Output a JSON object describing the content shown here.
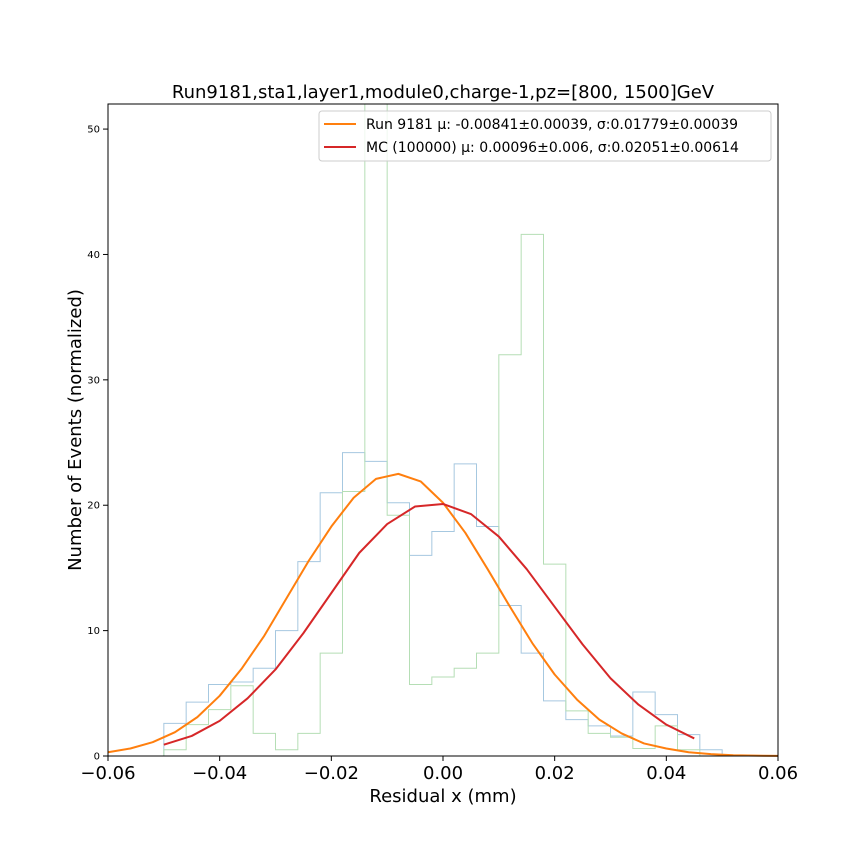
{
  "chart_data": {
    "type": "line",
    "title": "Run9181,sta1,layer1,module0,charge-1,pz=[800, 1500]GeV",
    "xlabel": "Residual x (mm)",
    "ylabel": "Number of Events (normalized)",
    "xlim": [
      -0.06,
      0.06
    ],
    "ylim": [
      0,
      52
    ],
    "xticks": [
      -0.06,
      -0.04,
      -0.02,
      0.0,
      0.02,
      0.04,
      0.06
    ],
    "xtick_labels": [
      "−0.06",
      "−0.04",
      "−0.02",
      "0.00",
      "0.02",
      "0.04",
      "0.06"
    ],
    "yticks": [
      0,
      10,
      20,
      30,
      40,
      50
    ],
    "ytick_labels": [
      "0",
      "10",
      "20",
      "30",
      "40",
      "50"
    ],
    "grid": false,
    "legend_position": "top-right",
    "legend": [
      {
        "label": "Run 9181 μ: -0.00841±0.00039, σ:0.01779±0.00039",
        "color": "#ff7f0e"
      },
      {
        "label": "MC (100000) μ: 0.00096±0.006, σ:0.02051±0.00614",
        "color": "#d62728"
      }
    ],
    "histograms": [
      {
        "color": "#a6c8e0",
        "bin_edges": [
          -0.05,
          -0.046,
          -0.042,
          -0.038,
          -0.034,
          -0.03,
          -0.026,
          -0.022,
          -0.018,
          -0.014,
          -0.01,
          -0.006,
          -0.002,
          0.002,
          0.006,
          0.01,
          0.014,
          0.018,
          0.022,
          0.026,
          0.03,
          0.034,
          0.038,
          0.042,
          0.046,
          0.05
        ],
        "counts": [
          2.6,
          4.3,
          5.7,
          5.9,
          7.0,
          10.0,
          15.5,
          21.0,
          24.2,
          23.5,
          20.2,
          16.0,
          17.9,
          23.3,
          18.3,
          12.0,
          8.2,
          4.4,
          2.9,
          2.4,
          1.6,
          5.1,
          3.3,
          1.7,
          0.5
        ]
      },
      {
        "color": "#b5deb5",
        "bin_edges": [
          -0.05,
          -0.046,
          -0.042,
          -0.038,
          -0.034,
          -0.03,
          -0.026,
          -0.022,
          -0.018,
          -0.014,
          -0.01,
          -0.006,
          -0.002,
          0.002,
          0.006,
          0.01,
          0.014,
          0.018,
          0.022,
          0.026,
          0.03,
          0.034,
          0.038,
          0.042,
          0.046,
          0.05
        ],
        "counts": [
          0.5,
          2.5,
          3.7,
          5.6,
          1.8,
          0.5,
          1.8,
          8.2,
          21.1,
          52.0,
          19.2,
          5.7,
          6.3,
          7.0,
          8.2,
          32.0,
          41.6,
          15.3,
          3.6,
          1.8,
          1.5,
          0.6,
          2.4,
          0.5,
          0.0
        ]
      }
    ],
    "series": [
      {
        "name": "Run 9181 μ: -0.00841±0.00039, σ:0.01779±0.00039",
        "color": "#ff7f0e",
        "x": [
          -0.06,
          -0.056,
          -0.052,
          -0.048,
          -0.044,
          -0.04,
          -0.036,
          -0.032,
          -0.028,
          -0.024,
          -0.02,
          -0.016,
          -0.012,
          -0.008,
          -0.004,
          0.0,
          0.004,
          0.008,
          0.012,
          0.016,
          0.02,
          0.024,
          0.028,
          0.032,
          0.036,
          0.04,
          0.044,
          0.048,
          0.052,
          0.056,
          0.06
        ],
        "y": [
          0.3,
          0.6,
          1.1,
          1.9,
          3.1,
          4.8,
          7.0,
          9.6,
          12.6,
          15.6,
          18.3,
          20.6,
          22.1,
          22.5,
          21.9,
          20.2,
          17.8,
          14.9,
          11.9,
          9.0,
          6.5,
          4.5,
          2.9,
          1.8,
          1.0,
          0.6,
          0.3,
          0.15,
          0.06,
          0.03,
          0.01
        ]
      },
      {
        "name": "MC (100000) μ: 0.00096±0.006, σ:0.02051±0.00614",
        "color": "#d62728",
        "x": [
          -0.05,
          -0.045,
          -0.04,
          -0.035,
          -0.03,
          -0.025,
          -0.02,
          -0.015,
          -0.01,
          -0.005,
          0.0,
          0.005,
          0.01,
          0.015,
          0.02,
          0.025,
          0.03,
          0.035,
          0.04,
          0.045
        ],
        "y": [
          0.9,
          1.6,
          2.8,
          4.6,
          6.9,
          9.8,
          13.0,
          16.2,
          18.5,
          19.9,
          20.1,
          19.3,
          17.5,
          14.9,
          11.9,
          8.9,
          6.2,
          4.1,
          2.5,
          1.4
        ]
      }
    ]
  }
}
